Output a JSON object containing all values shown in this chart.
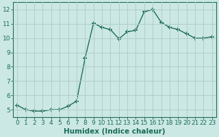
{
  "x": [
    0,
    1,
    2,
    3,
    4,
    5,
    6,
    7,
    8,
    9,
    10,
    11,
    12,
    13,
    14,
    15,
    16,
    17,
    18,
    19,
    20,
    21,
    22,
    23
  ],
  "y": [
    5.3,
    5.0,
    4.9,
    4.9,
    5.0,
    5.0,
    5.25,
    5.6,
    8.6,
    11.05,
    10.75,
    10.6,
    9.95,
    10.45,
    10.55,
    11.85,
    12.0,
    11.1,
    10.75,
    10.6,
    10.3,
    10.0,
    10.0,
    10.1
  ],
  "line_color": "#1a6b5a",
  "marker": "+",
  "marker_size": 4,
  "marker_linewidth": 1.2,
  "bg_color": "#cce8e4",
  "grid_color": "#b0cec9",
  "xlabel": "Humidex (Indice chaleur)",
  "xlim": [
    -0.5,
    23.5
  ],
  "ylim": [
    4.5,
    12.5
  ],
  "yticks": [
    5,
    6,
    7,
    8,
    9,
    10,
    11,
    12
  ],
  "xticks": [
    0,
    1,
    2,
    3,
    4,
    5,
    6,
    7,
    8,
    9,
    10,
    11,
    12,
    13,
    14,
    15,
    16,
    17,
    18,
    19,
    20,
    21,
    22,
    23
  ],
  "tick_color": "#1a6b5a",
  "label_fontsize": 6.5,
  "axis_fontsize": 7.5,
  "linewidth": 1.0
}
